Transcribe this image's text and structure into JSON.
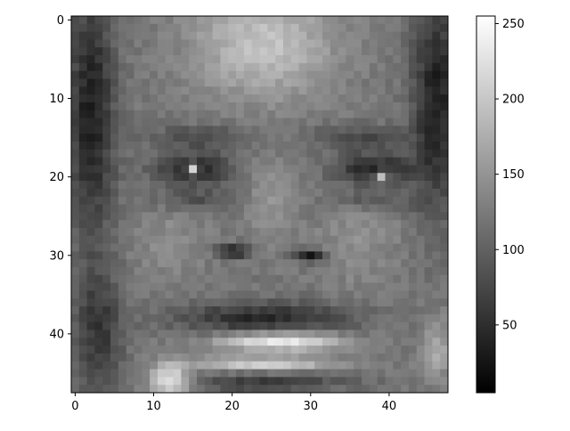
{
  "chart_data": {
    "type": "heatmap",
    "title": "",
    "xlabel": "",
    "ylabel": "",
    "colormap": "gray",
    "grid": false,
    "image_size": [
      48,
      48
    ],
    "xlim": [
      -0.5,
      47.5
    ],
    "ylim": [
      47.5,
      -0.5
    ],
    "x_ticks": [
      0,
      10,
      20,
      30,
      40
    ],
    "x_tick_labels": [
      "0",
      "10",
      "20",
      "30",
      "40"
    ],
    "y_ticks": [
      0,
      10,
      20,
      30,
      40
    ],
    "y_tick_labels": [
      "0",
      "10",
      "20",
      "30",
      "40"
    ],
    "colorbar": {
      "vmin": 5,
      "vmax": 255,
      "ticks": [
        50,
        100,
        150,
        200,
        250
      ],
      "tick_labels": [
        "50",
        "100",
        "150",
        "200",
        "250"
      ]
    },
    "pixel_values_description": "48x48 grayscale face: dark hair at left and right edges, bright forehead, dark eyes around row 19, bright eye glints near columns 15 and 39, dark nostrils around row 30, bright teeth rows 40-45, bright bottom-left corner"
  }
}
